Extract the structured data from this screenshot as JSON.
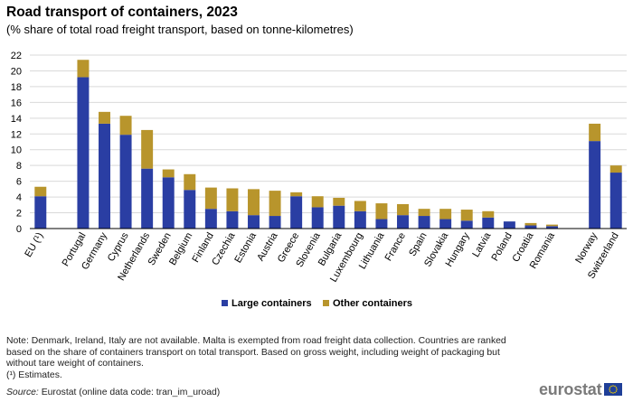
{
  "header": {
    "title": "Road transport of containers, 2023",
    "subtitle": "(% share of total road freight transport, based on tonne-kilometres)"
  },
  "footer": {
    "note": "Note: Denmark, Ireland, Italy are not available. Malta is exempted from road freight data collection. Countries are ranked based on the share of containers transport on total transport. Based on gross weight, including weight of packaging but without tare weight of containers.",
    "estimates": "(¹) Estimates.",
    "source_label": "Source:",
    "source_text": " Eurostat (online data code: tran_im_uroad)",
    "logo_text": "eurostat"
  },
  "chart_data": {
    "type": "bar",
    "stacked": true,
    "categories": [
      "EU (¹)",
      "Portugal",
      "Germany",
      "Cyprus",
      "Netherlands",
      "Sweden",
      "Belgium",
      "Finland",
      "Czechia",
      "Estonia",
      "Austria",
      "Greece",
      "Slovenia",
      "Bulgaria",
      "Luxembourg",
      "Lithuania",
      "France",
      "Spain",
      "Slovakia",
      "Hungary",
      "Latvia",
      "Poland",
      "Croatia",
      "Romania",
      "Norway",
      "Switzerland"
    ],
    "gap_after": [
      "EU (¹)",
      "Romania"
    ],
    "series": [
      {
        "name": "Large containers",
        "color": "#2a3ea3",
        "values": [
          4.1,
          19.2,
          13.3,
          11.9,
          7.6,
          6.5,
          4.9,
          2.5,
          2.2,
          1.7,
          1.6,
          4.1,
          2.7,
          2.9,
          2.2,
          1.2,
          1.7,
          1.6,
          1.2,
          1.0,
          1.4,
          0.9,
          0.4,
          0.3,
          11.1,
          7.1
        ]
      },
      {
        "name": "Other containers",
        "color": "#b8952c",
        "values": [
          1.2,
          2.2,
          1.5,
          2.4,
          4.9,
          1.0,
          2.0,
          2.7,
          2.9,
          3.3,
          3.2,
          0.5,
          1.4,
          1.0,
          1.3,
          2.0,
          1.4,
          0.9,
          1.3,
          1.4,
          0.8,
          0.0,
          0.3,
          0.2,
          2.2,
          0.9
        ]
      }
    ],
    "ylim": [
      0,
      22
    ],
    "yticks": [
      0,
      2,
      4,
      6,
      8,
      10,
      12,
      14,
      16,
      18,
      20,
      22
    ],
    "grid": true,
    "legend_position": "bottom-center"
  }
}
